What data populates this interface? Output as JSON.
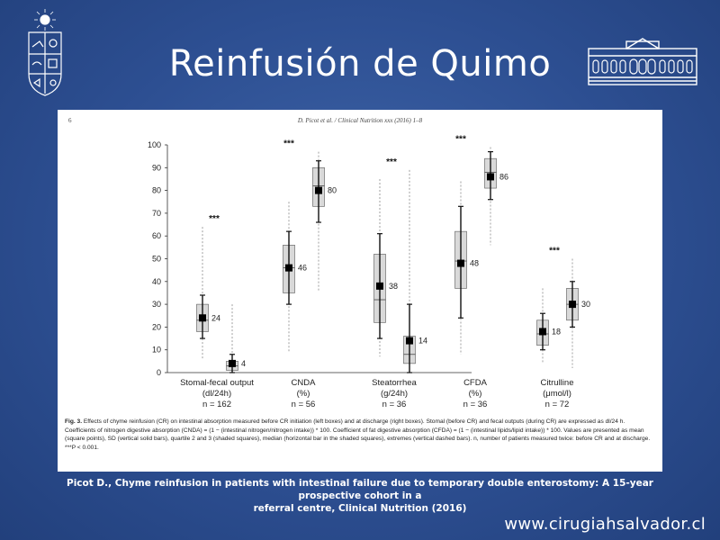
{
  "slide": {
    "title": "Reinfusión de Quimo",
    "citation_line1": "Picot D., Chyme reinfusion in patients with intestinal failure due to temporary double enterostomy: A 15-year prospective cohort in a",
    "citation_line2": "referral centre, Clinical Nutrition (2016)",
    "website": "www.cirugiahsalvador.cl"
  },
  "figure": {
    "page_number": "6",
    "running_header": "D. Picot et al. / Clinical Nutrition xxx (2016) 1–8",
    "caption_label": "Fig. 3.",
    "caption_text": "Effects of chyme reinfusion (CR) on intestinal absorption measured before CR initiation (left boxes) and at discharge (right boxes). Stomal (before CR) and fecal outputs (during CR) are expressed as dl/24 h. Coefficients of nitrogen digestive absorption (CNDA) = (1 − (intestinal nitrogen/nitrogen intake)) * 100. Coefficient of fat digestive absorption (CFDA) = (1 − (intestinal lipids/lipid intake)) * 100. Values are presented as mean (square points), SD (vertical solid bars), quartile 2 and 3 (shaded squares), median (horizontal bar in the shaded squares), extremes (vertical dashed bars). n, number of patients measured twice: before CR and at discharge. ***P < 0.001."
  },
  "chart_data": {
    "type": "box",
    "ylim": [
      0,
      100
    ],
    "yticks": [
      0,
      10,
      20,
      30,
      40,
      50,
      60,
      70,
      80,
      90,
      100
    ],
    "groups": [
      {
        "label_lines": [
          "Stomal-fecal output",
          "(dl/24h)",
          "n = 162"
        ],
        "significance": "***",
        "boxes": [
          {
            "mean": 24,
            "label": "24",
            "q1": 18,
            "median": 23,
            "q3": 30,
            "sd_low": 15,
            "sd_high": 34,
            "min": 6,
            "max": 64
          },
          {
            "mean": 4,
            "label": "4",
            "q1": 1,
            "median": 3,
            "q3": 5,
            "sd_low": 0,
            "sd_high": 8,
            "min": 0,
            "max": 30
          }
        ]
      },
      {
        "label_lines": [
          "CNDA",
          "(%)",
          "n = 56"
        ],
        "significance": "***",
        "boxes": [
          {
            "mean": 46,
            "label": "46",
            "q1": 35,
            "median": 46,
            "q3": 56,
            "sd_low": 30,
            "sd_high": 62,
            "min": 9,
            "max": 75
          },
          {
            "mean": 80,
            "label": "80",
            "q1": 73,
            "median": 82,
            "q3": 90,
            "sd_low": 66,
            "sd_high": 93,
            "min": 36,
            "max": 97
          }
        ]
      },
      {
        "label_lines": [
          "Steatorrhea",
          "(g/24h)",
          "n = 36"
        ],
        "significance": "***",
        "boxes": [
          {
            "mean": 38,
            "label": "38",
            "q1": 22,
            "median": 32,
            "q3": 52,
            "sd_low": 15,
            "sd_high": 61,
            "min": 7,
            "max": 85
          },
          {
            "mean": 14,
            "label": "14",
            "q1": 4,
            "median": 8,
            "q3": 16,
            "sd_low": 0,
            "sd_high": 30,
            "min": 0,
            "max": 89
          }
        ]
      },
      {
        "label_lines": [
          "CFDA",
          "(%)",
          "n = 36"
        ],
        "significance": "***",
        "boxes": [
          {
            "mean": 48,
            "label": "48",
            "q1": 37,
            "median": 49,
            "q3": 62,
            "sd_low": 24,
            "sd_high": 73,
            "min": 8,
            "max": 84
          },
          {
            "mean": 86,
            "label": "86",
            "q1": 81,
            "median": 88,
            "q3": 94,
            "sd_low": 76,
            "sd_high": 97,
            "min": 56,
            "max": 99
          }
        ]
      },
      {
        "label_lines": [
          "Citrulline",
          "(μmol/l)",
          "n = 72"
        ],
        "significance": "***",
        "boxes": [
          {
            "mean": 18,
            "label": "18",
            "q1": 12,
            "median": 17,
            "q3": 23,
            "sd_low": 10,
            "sd_high": 26,
            "min": 4,
            "max": 37
          },
          {
            "mean": 30,
            "label": "30",
            "q1": 23,
            "median": 30,
            "q3": 37,
            "sd_low": 20,
            "sd_high": 40,
            "min": 2,
            "max": 50
          }
        ]
      }
    ]
  }
}
